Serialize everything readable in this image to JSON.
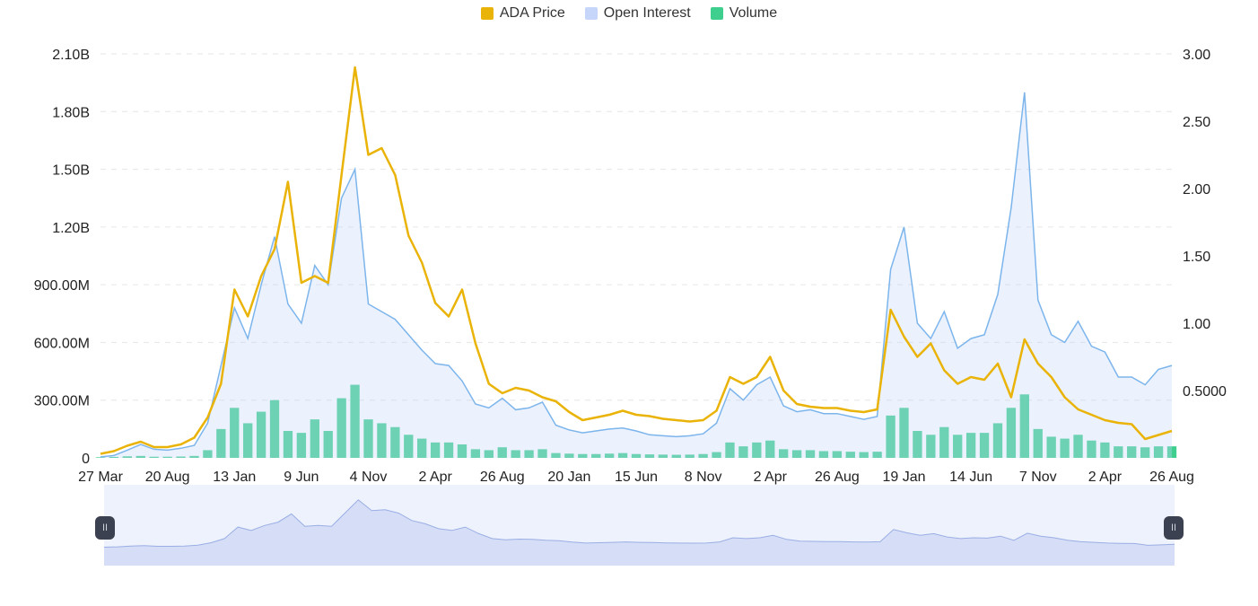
{
  "legend": {
    "price_label": "ADA Price",
    "oi_label": "Open Interest",
    "volume_label": "Volume"
  },
  "colors": {
    "price": "#eab308",
    "open_interest_line": "#7cb5ec",
    "open_interest_fill": "#c5d6fa",
    "volume": "#3ecf8e",
    "navigator_fill": "#d6def7",
    "navigator_line": "#9aaee4"
  },
  "chart_data": {
    "type": "line",
    "x_tick_labels": [
      "27 Mar",
      "20 Aug",
      "13 Jan",
      "9 Jun",
      "4 Nov",
      "2 Apr",
      "26 Aug",
      "20 Jan",
      "15 Jun",
      "8 Nov",
      "2 Apr",
      "26 Aug",
      "19 Jan",
      "14 Jun",
      "7 Nov",
      "2 Apr",
      "26 Aug"
    ],
    "left_axis": {
      "ticks": [
        "0",
        "300.00M",
        "600.00M",
        "900.00M",
        "1.20B",
        "1.50B",
        "1.80B",
        "2.10B"
      ],
      "range": [
        0,
        2100000000
      ]
    },
    "right_axis": {
      "ticks": [
        "0.5000",
        "1.00",
        "1.50",
        "2.00",
        "2.50",
        "3.00"
      ],
      "range": [
        0,
        3.0
      ]
    },
    "grid": true,
    "legend_position": "top-center",
    "series": [
      {
        "name": "ADA Price",
        "axis": "right",
        "values": [
          0.03,
          0.05,
          0.09,
          0.12,
          0.08,
          0.08,
          0.1,
          0.15,
          0.3,
          0.55,
          1.25,
          1.05,
          1.35,
          1.55,
          2.05,
          1.3,
          1.35,
          1.3,
          2.1,
          2.9,
          2.25,
          2.3,
          2.1,
          1.65,
          1.45,
          1.15,
          1.05,
          1.25,
          0.85,
          0.55,
          0.48,
          0.52,
          0.5,
          0.45,
          0.42,
          0.34,
          0.28,
          0.3,
          0.32,
          0.35,
          0.32,
          0.31,
          0.29,
          0.28,
          0.27,
          0.28,
          0.35,
          0.6,
          0.55,
          0.6,
          0.75,
          0.5,
          0.4,
          0.38,
          0.37,
          0.37,
          0.35,
          0.34,
          0.36,
          1.1,
          0.9,
          0.75,
          0.85,
          0.65,
          0.55,
          0.6,
          0.58,
          0.7,
          0.45,
          0.88,
          0.7,
          0.6,
          0.45,
          0.36,
          0.32,
          0.28,
          0.26,
          0.25,
          0.14,
          0.17,
          0.2
        ]
      },
      {
        "name": "Open Interest",
        "axis": "left",
        "values": [
          5,
          12,
          40,
          70,
          45,
          40,
          50,
          65,
          180,
          480,
          780,
          620,
          900,
          1150,
          800,
          700,
          1000,
          900,
          1350,
          1500,
          800,
          760,
          720,
          640,
          560,
          490,
          480,
          400,
          280,
          260,
          310,
          250,
          260,
          290,
          170,
          145,
          130,
          140,
          150,
          155,
          140,
          120,
          115,
          110,
          115,
          125,
          180,
          360,
          300,
          380,
          420,
          270,
          240,
          250,
          230,
          230,
          215,
          200,
          215,
          980,
          1200,
          700,
          620,
          760,
          570,
          620,
          640,
          850,
          1300,
          1900,
          820,
          640,
          600,
          710,
          580,
          550,
          420,
          420,
          380,
          460,
          480
        ]
      },
      {
        "name": "Volume",
        "axis": "left",
        "values": [
          3,
          5,
          8,
          10,
          6,
          6,
          7,
          10,
          40,
          150,
          260,
          180,
          240,
          300,
          140,
          130,
          200,
          140,
          310,
          380,
          200,
          180,
          160,
          120,
          100,
          80,
          80,
          70,
          45,
          40,
          55,
          40,
          40,
          45,
          25,
          22,
          20,
          20,
          22,
          25,
          20,
          18,
          17,
          16,
          17,
          20,
          30,
          80,
          60,
          80,
          90,
          45,
          40,
          40,
          35,
          35,
          32,
          30,
          32,
          220,
          260,
          140,
          120,
          160,
          120,
          130,
          130,
          180,
          260,
          330,
          150,
          110,
          100,
          120,
          90,
          80,
          60,
          60,
          55,
          60,
          60
        ]
      }
    ]
  }
}
